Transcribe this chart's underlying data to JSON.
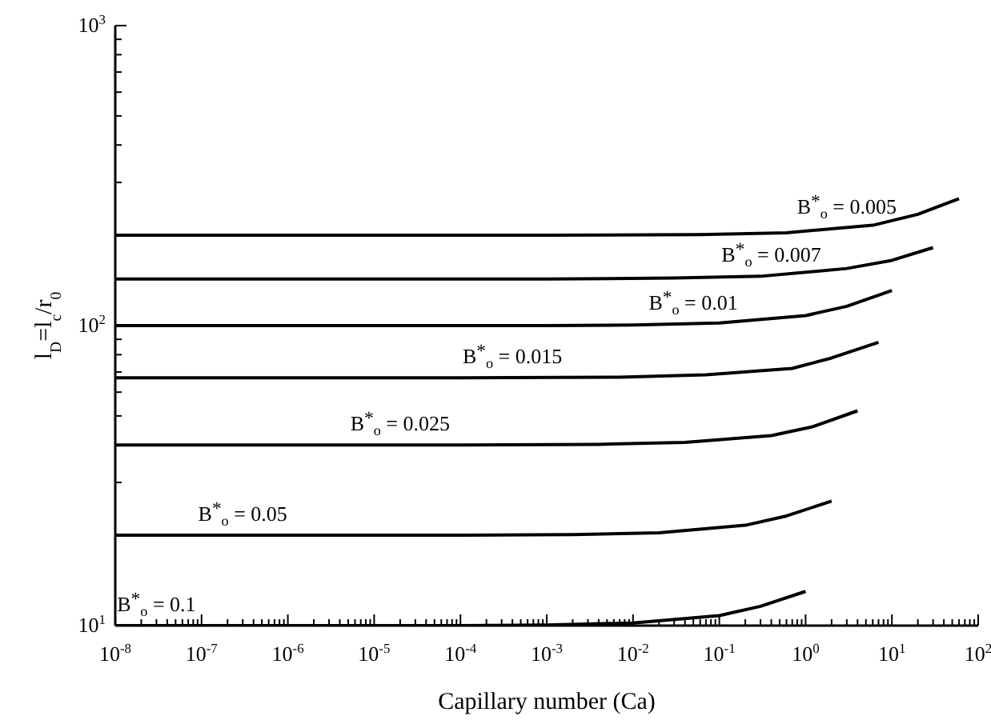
{
  "chart_data": {
    "type": "line",
    "xlabel": "Capillary number (Ca)",
    "ylabel": "l$_{D}$=l$_{c}$/r$_{0}$",
    "log": "xy",
    "grid": false,
    "marker": "none",
    "line_style": "solid",
    "xlim": [
      1e-08,
      100
    ],
    "ylim": [
      10,
      1000
    ],
    "xticks": [
      {
        "value": 1e-08,
        "label": "10$^{-8}$"
      },
      {
        "value": 2e-08,
        "label": null
      },
      {
        "value": 3e-08,
        "label": null
      },
      {
        "value": 4e-08,
        "label": null
      },
      {
        "value": 5e-08,
        "label": null
      },
      {
        "value": 6e-08,
        "label": null
      },
      {
        "value": 7e-08,
        "label": null
      },
      {
        "value": 8e-08,
        "label": null
      },
      {
        "value": 9e-08,
        "label": null
      },
      {
        "value": 1e-07,
        "label": "10$^{-7}$"
      },
      {
        "value": 2e-07,
        "label": null
      },
      {
        "value": 3e-07,
        "label": null
      },
      {
        "value": 4e-07,
        "label": null
      },
      {
        "value": 5e-07,
        "label": null
      },
      {
        "value": 6e-07,
        "label": null
      },
      {
        "value": 7e-07,
        "label": null
      },
      {
        "value": 8e-07,
        "label": null
      },
      {
        "value": 9e-07,
        "label": null
      },
      {
        "value": 1e-06,
        "label": "10$^{-6}$"
      },
      {
        "value": 2e-06,
        "label": null
      },
      {
        "value": 3e-06,
        "label": null
      },
      {
        "value": 4e-06,
        "label": null
      },
      {
        "value": 5e-06,
        "label": null
      },
      {
        "value": 6e-06,
        "label": null
      },
      {
        "value": 7e-06,
        "label": null
      },
      {
        "value": 8e-06,
        "label": null
      },
      {
        "value": 9e-06,
        "label": null
      },
      {
        "value": 1e-05,
        "label": "10$^{-5}$"
      },
      {
        "value": 2e-05,
        "label": null
      },
      {
        "value": 3e-05,
        "label": null
      },
      {
        "value": 4e-05,
        "label": null
      },
      {
        "value": 5e-05,
        "label": null
      },
      {
        "value": 6e-05,
        "label": null
      },
      {
        "value": 7e-05,
        "label": null
      },
      {
        "value": 8e-05,
        "label": null
      },
      {
        "value": 9e-05,
        "label": null
      },
      {
        "value": 0.0001,
        "label": "10$^{-4}$"
      },
      {
        "value": 0.0002,
        "label": null
      },
      {
        "value": 0.0003,
        "label": null
      },
      {
        "value": 0.0004,
        "label": null
      },
      {
        "value": 0.0005,
        "label": null
      },
      {
        "value": 0.0006,
        "label": null
      },
      {
        "value": 0.0007,
        "label": null
      },
      {
        "value": 0.0008,
        "label": null
      },
      {
        "value": 0.0009,
        "label": null
      },
      {
        "value": 0.001,
        "label": "10$^{-3}$"
      },
      {
        "value": 0.002,
        "label": null
      },
      {
        "value": 0.003,
        "label": null
      },
      {
        "value": 0.004,
        "label": null
      },
      {
        "value": 0.005,
        "label": null
      },
      {
        "value": 0.006,
        "label": null
      },
      {
        "value": 0.007,
        "label": null
      },
      {
        "value": 0.008,
        "label": null
      },
      {
        "value": 0.009,
        "label": null
      },
      {
        "value": 0.01,
        "label": "10$^{-2}$"
      },
      {
        "value": 0.02,
        "label": null
      },
      {
        "value": 0.03,
        "label": null
      },
      {
        "value": 0.04,
        "label": null
      },
      {
        "value": 0.05,
        "label": null
      },
      {
        "value": 0.06,
        "label": null
      },
      {
        "value": 0.07,
        "label": null
      },
      {
        "value": 0.08,
        "label": null
      },
      {
        "value": 0.09,
        "label": null
      },
      {
        "value": 0.1,
        "label": "10$^{-1}$"
      },
      {
        "value": 0.2,
        "label": null
      },
      {
        "value": 0.3,
        "label": null
      },
      {
        "value": 0.4,
        "label": null
      },
      {
        "value": 0.5,
        "label": null
      },
      {
        "value": 0.6,
        "label": null
      },
      {
        "value": 0.7,
        "label": null
      },
      {
        "value": 0.8,
        "label": null
      },
      {
        "value": 0.9,
        "label": null
      },
      {
        "value": 1,
        "label": "10$^{0}$"
      },
      {
        "value": 2,
        "label": null
      },
      {
        "value": 3,
        "label": null
      },
      {
        "value": 4,
        "label": null
      },
      {
        "value": 5,
        "label": null
      },
      {
        "value": 6,
        "label": null
      },
      {
        "value": 7,
        "label": null
      },
      {
        "value": 8,
        "label": null
      },
      {
        "value": 9,
        "label": null
      },
      {
        "value": 10,
        "label": "10$^{1}$"
      },
      {
        "value": 20,
        "label": null
      },
      {
        "value": 30,
        "label": null
      },
      {
        "value": 40,
        "label": null
      },
      {
        "value": 50,
        "label": null
      },
      {
        "value": 60,
        "label": null
      },
      {
        "value": 70,
        "label": null
      },
      {
        "value": 80,
        "label": null
      },
      {
        "value": 90,
        "label": null
      },
      {
        "value": 100,
        "label": "10$^{2}$"
      }
    ],
    "yticks": [
      {
        "value": 10,
        "label": "10$^{1}$"
      },
      {
        "value": 20,
        "label": null
      },
      {
        "value": 30,
        "label": null
      },
      {
        "value": 40,
        "label": null
      },
      {
        "value": 50,
        "label": null
      },
      {
        "value": 60,
        "label": null
      },
      {
        "value": 70,
        "label": null
      },
      {
        "value": 80,
        "label": null
      },
      {
        "value": 90,
        "label": null
      },
      {
        "value": 100,
        "label": "10$^{2}$"
      },
      {
        "value": 200,
        "label": null
      },
      {
        "value": 300,
        "label": null
      },
      {
        "value": 400,
        "label": null
      },
      {
        "value": 500,
        "label": null
      },
      {
        "value": 600,
        "label": null
      },
      {
        "value": 700,
        "label": null
      },
      {
        "value": 800,
        "label": null
      },
      {
        "value": 900,
        "label": null
      },
      {
        "value": 1000,
        "label": "10$^{3}$"
      }
    ],
    "series": [
      {
        "color": "#000000",
        "x": [
          1e-08,
          0.0001,
          0.001,
          0.01,
          0.1,
          0.3,
          1
        ],
        "values": [
          10,
          10,
          10.05,
          10.2,
          10.8,
          11.6,
          13
        ]
      },
      {
        "color": "#000000",
        "x": [
          1e-08,
          0.0001,
          0.002,
          0.02,
          0.2,
          0.6,
          2
        ],
        "values": [
          20,
          20,
          20.1,
          20.4,
          21.6,
          23.2,
          26
        ]
      },
      {
        "color": "#000000",
        "x": [
          1e-08,
          0.0001,
          0.004,
          0.04,
          0.4,
          1.2,
          4
        ],
        "values": [
          40,
          40,
          40.2,
          40.8,
          43,
          46,
          52
        ]
      },
      {
        "color": "#000000",
        "x": [
          1e-08,
          0.0001,
          0.007,
          0.07,
          0.7,
          2,
          7
        ],
        "values": [
          67,
          67,
          67.3,
          68.5,
          72,
          78,
          88
        ]
      },
      {
        "color": "#000000",
        "x": [
          1e-08,
          0.001,
          0.01,
          0.1,
          1,
          3,
          10
        ],
        "values": [
          100,
          100,
          100.5,
          102,
          108,
          116,
          131
        ]
      },
      {
        "color": "#000000",
        "x": [
          1e-08,
          0.001,
          0.03,
          0.3,
          3,
          10,
          30
        ],
        "values": [
          143,
          143,
          144,
          146,
          155,
          165,
          182
        ]
      },
      {
        "color": "#000000",
        "x": [
          1e-08,
          0.001,
          0.06,
          0.6,
          6,
          20,
          60
        ],
        "values": [
          200,
          200,
          201,
          204,
          216,
          235,
          265
        ]
      }
    ],
    "annotations": [
      {
        "text": "B$^{*}$$_{o}$ = 0.1",
        "x": 3e-08,
        "y": 10
      },
      {
        "text": "B$^{*}$$_{o}$ = 0.05",
        "x": 3e-07,
        "y": 20
      },
      {
        "text": "B$^{*}$$_{o}$ = 0.025",
        "x": 2e-05,
        "y": 40
      },
      {
        "text": "B$^{*}$$_{o}$ = 0.015",
        "x": 0.0004,
        "y": 67
      },
      {
        "text": "B$^{*}$$_{o}$ = 0.01",
        "x": 0.05,
        "y": 101
      },
      {
        "text": "B$^{*}$$_{o}$ = 0.007",
        "x": 0.4,
        "y": 146
      },
      {
        "text": "B$^{*}$$_{o}$ = 0.005",
        "x": 3,
        "y": 212
      }
    ]
  }
}
